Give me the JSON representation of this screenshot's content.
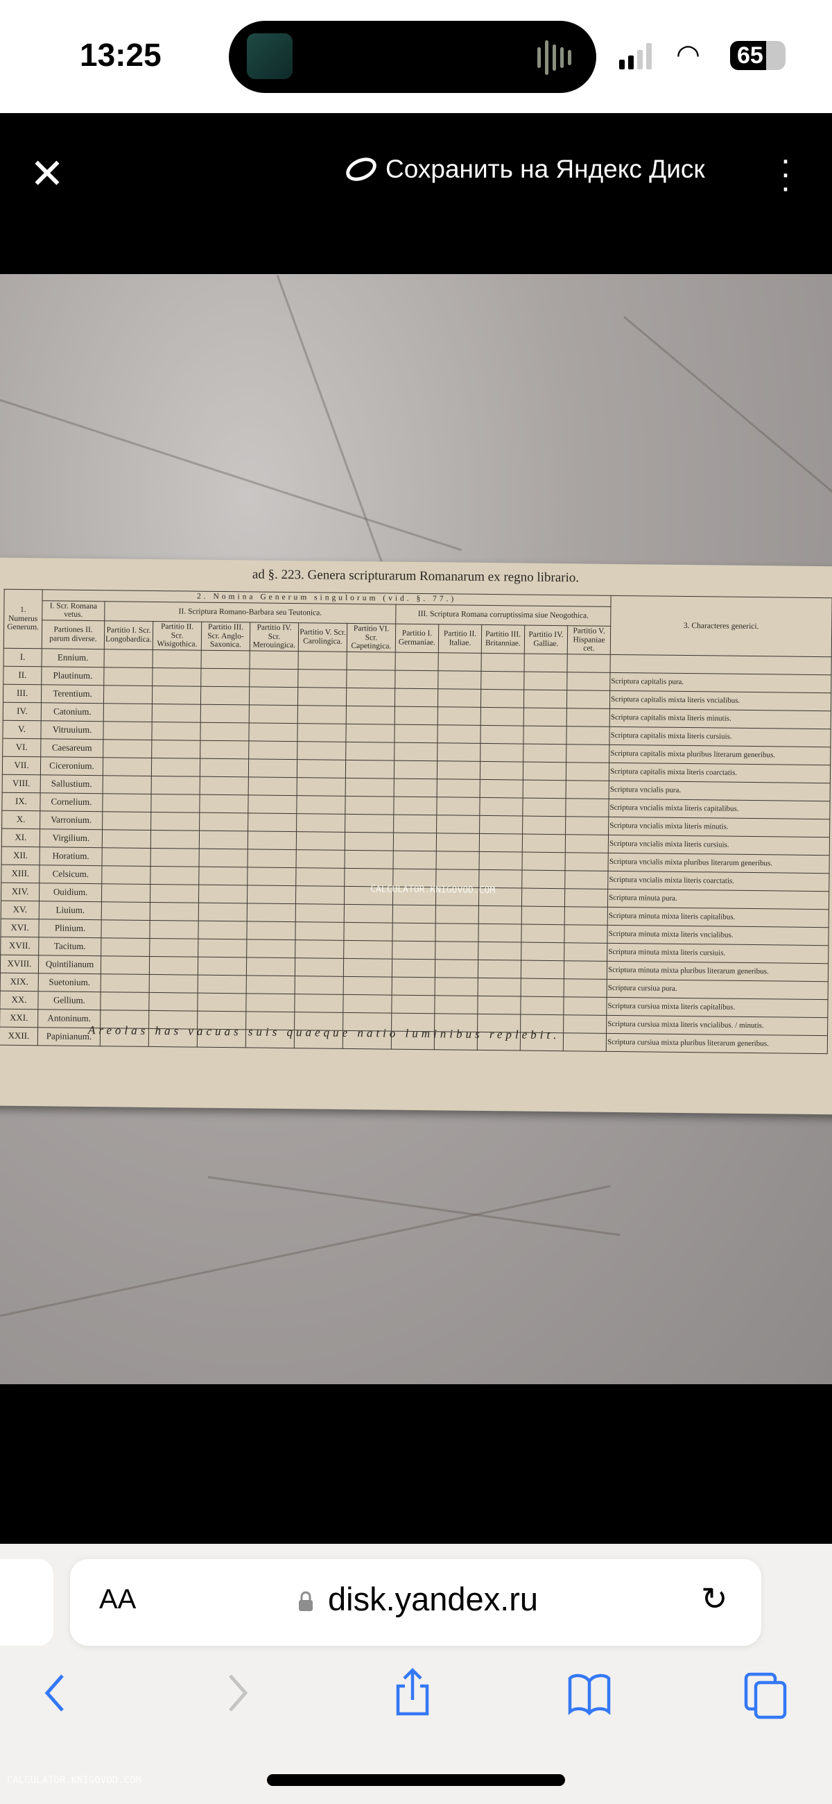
{
  "status_bar": {
    "time": "13:25",
    "battery": "65"
  },
  "viewer_header": {
    "close_icon": "close-icon",
    "save_label": "Сохранить на Яндекс Диск",
    "menu_icon": "more-vertical-icon"
  },
  "document": {
    "title": "ad §. 223. Genera scripturarum Romanarum ex regno librario.",
    "col1_header": "1. Numerus Generum.",
    "group2_header": "2. Nomina Generum singulorum (vid. §. 77.)",
    "col_roman_header": "I. Scr. Romana vetus.",
    "col_roman_sub": "Partiones II. parum diverse.",
    "group_II": "II. Scriptura Romano-Barbara seu Teutonica.",
    "group_II_cols": [
      "Partitio I. Scr. Longobardica.",
      "Partitio II. Scr. Wisigothica.",
      "Partitio III. Scr. Anglo-Saxonica.",
      "Partitio IV. Scr. Merouingica.",
      "Partitio V. Scr. Carolingica.",
      "Partitio VI. Scr. Capetingica."
    ],
    "group_III": "III. Scriptura Romana corruptissima siue Neogothica.",
    "group_III_cols": [
      "Partitio I. Germaniae.",
      "Partitio II. Italiae.",
      "Partitio III. Britanniae.",
      "Partitio IV. Galliae.",
      "Partitio V. Hispaniae cet."
    ],
    "col3_header": "3. Characteres generici.",
    "rows": [
      {
        "num": "I.",
        "name": "Ennium.",
        "char": ""
      },
      {
        "num": "II.",
        "name": "Plautinum.",
        "char": "Scriptura capitalis pura."
      },
      {
        "num": "III.",
        "name": "Terentium.",
        "char": "Scriptura capitalis mixta literis vncialibus."
      },
      {
        "num": "IV.",
        "name": "Catonium.",
        "char": "Scriptura capitalis mixta literis minutis."
      },
      {
        "num": "V.",
        "name": "Vitruuium.",
        "char": "Scriptura capitalis mixta literis cursiuis."
      },
      {
        "num": "VI.",
        "name": "Caesareum",
        "char": "Scriptura capitalis mixta pluribus literarum generibus."
      },
      {
        "num": "VII.",
        "name": "Ciceronium.",
        "char": "Scriptura capitalis mixta literis coarctatis."
      },
      {
        "num": "VIII.",
        "name": "Sallustium.",
        "char": "Scriptura vncialis pura."
      },
      {
        "num": "IX.",
        "name": "Cornelium.",
        "char": "Scriptura vncialis mixta literis capitalibus."
      },
      {
        "num": "X.",
        "name": "Varronium.",
        "char": "Scriptura vncialis mixta literis minutis."
      },
      {
        "num": "XI.",
        "name": "Virgilium.",
        "char": "Scriptura vncialis mixta literis cursiuis."
      },
      {
        "num": "XII.",
        "name": "Horatium.",
        "char": "Scriptura vncialis mixta pluribus literarum generibus."
      },
      {
        "num": "XIII.",
        "name": "Celsicum.",
        "char": "Scriptura vncialis mixta literis coarctatis."
      },
      {
        "num": "XIV.",
        "name": "Ouidium.",
        "char": "Scriptura minuta pura."
      },
      {
        "num": "XV.",
        "name": "Liuium.",
        "char": "Scriptura minuta mixta literis capitalibus."
      },
      {
        "num": "XVI.",
        "name": "Plinium.",
        "char": "Scriptura minuta mixta literis vncialibus."
      },
      {
        "num": "XVII.",
        "name": "Tacitum.",
        "char": "Scriptura minuta mixta literis cursiuis."
      },
      {
        "num": "XVIII.",
        "name": "Quintilianum",
        "char": "Scriptura minuta mixta pluribus literarum generibus."
      },
      {
        "num": "XIX.",
        "name": "Suetonium.",
        "char": "Scriptura cursiua pura."
      },
      {
        "num": "XX.",
        "name": "Gellium.",
        "char": "Scriptura cursiua mixta literis capitalibus."
      },
      {
        "num": "XXI.",
        "name": "Antoninum.",
        "char": "Scriptura cursiua mixta literis vncialibus. / minutis."
      },
      {
        "num": "XXII.",
        "name": "Papinianum.",
        "char": "Scriptura cursiua mixta pluribus literarum generibus."
      }
    ],
    "footer": "Areolas has vacuas suis quaeque natio luminibus replebit.",
    "watermark": "CALCULATOR.KNIGOVOD.COM"
  },
  "browser": {
    "text_size_label": "AA",
    "url": "disk.yandex.ru",
    "reload_icon": "reload-icon",
    "toolbar": [
      "back-icon",
      "forward-icon",
      "share-icon",
      "bookmarks-icon",
      "tabs-icon"
    ],
    "accent": "#3478f6"
  },
  "watermark_bottom": "CALCULATOR.KNIGOVOD.COM"
}
